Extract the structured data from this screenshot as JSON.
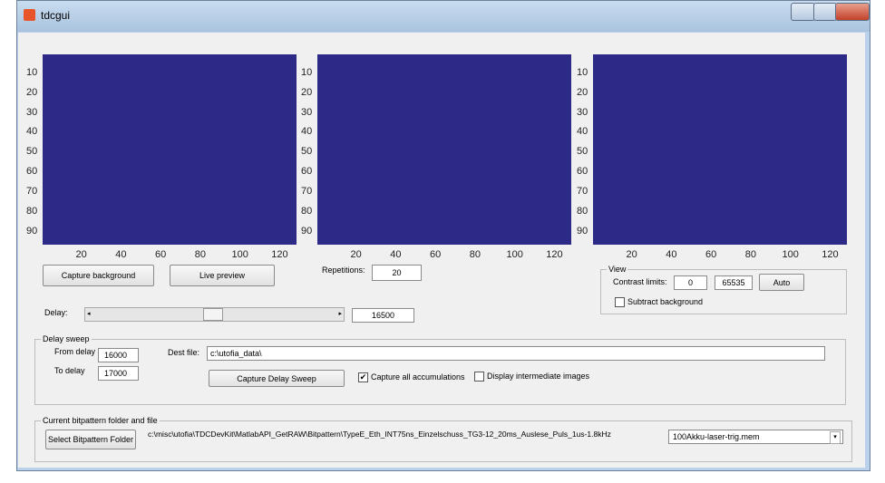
{
  "window": {
    "title": "tdcgui"
  },
  "axes": [
    {
      "xticks": [
        20,
        40,
        60,
        80,
        100,
        120
      ],
      "yticks": [
        10,
        20,
        30,
        40,
        50,
        60,
        70,
        80,
        90
      ]
    },
    {
      "xticks": [
        20,
        40,
        60,
        80,
        100,
        120
      ],
      "yticks": [
        10,
        20,
        30,
        40,
        50,
        60,
        70,
        80,
        90
      ]
    },
    {
      "xticks": [
        20,
        40,
        60,
        80,
        100,
        120
      ],
      "yticks": [
        10,
        20,
        30,
        40,
        50,
        60,
        70,
        80,
        90
      ]
    }
  ],
  "controls": {
    "capture_background": "Capture background",
    "live_preview": "Live preview",
    "repetitions_label": "Repetitions:",
    "repetitions_value": "20",
    "delay_label": "Delay:",
    "delay_value": "16500"
  },
  "view": {
    "title": "View",
    "contrast_label": "Contrast limits:",
    "contrast_min": "0",
    "contrast_max": "65535",
    "auto_button": "Auto",
    "subtract_background": {
      "label": "Subtract background",
      "checked": false
    }
  },
  "delay_sweep": {
    "title": "Delay sweep",
    "from_label": "From delay",
    "from_value": "16000",
    "to_label": "To delay",
    "to_value": "17000",
    "dest_label": "Dest file:",
    "dest_value": "c:\\utofia_data\\",
    "capture_button": "Capture Delay Sweep",
    "capture_all": {
      "label": "Capture all accumulations",
      "checked": true
    },
    "display_intermediate": {
      "label": "Display intermediate images",
      "checked": false
    }
  },
  "bitpattern": {
    "title": "Current bitpattern folder and file",
    "select_button": "Select Bitpattern Folder",
    "path": "c:\\misc\\utofia\\TDCDevKit\\MatlabAPI_GetRAW\\Bitpattern\\TypeE_Eth_INT75ns_Einzelschuss_TG3-12_20ms_Auslese_Puls_1us-1.8kHz",
    "file": "100Akku-laser-trig.mem"
  }
}
